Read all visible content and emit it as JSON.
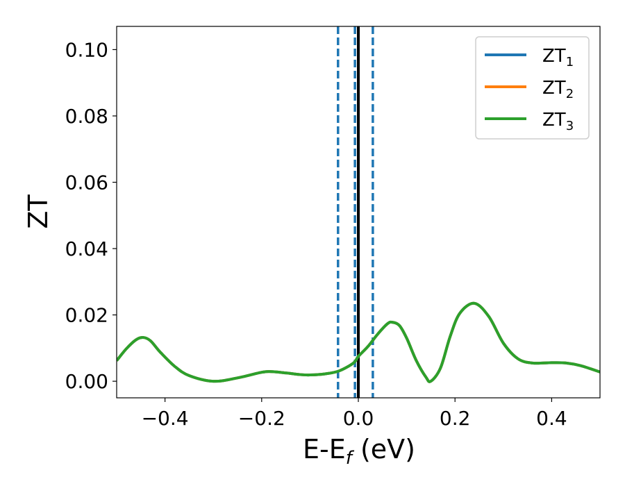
{
  "chart_data": {
    "type": "line",
    "xlabel_main": "E-E",
    "xlabel_sub": "f",
    "xlabel_unit": " (eV)",
    "ylabel": "ZT",
    "xlim": [
      -0.5,
      0.5
    ],
    "ylim": [
      -0.005,
      0.107
    ],
    "x_ticks": [
      -0.4,
      -0.2,
      0.0,
      0.2,
      0.4
    ],
    "x_tick_labels": [
      "−0.4",
      "−0.2",
      "0.0",
      "0.2",
      "0.4"
    ],
    "y_ticks": [
      0.0,
      0.02,
      0.04,
      0.06,
      0.08,
      0.1
    ],
    "y_tick_labels": [
      "0.00",
      "0.02",
      "0.04",
      "0.06",
      "0.08",
      "0.10"
    ],
    "legend_position": "top-right",
    "grid": false,
    "vlines": [
      {
        "x": 0.0,
        "style": "solid",
        "color": "#000000"
      },
      {
        "x": -0.042,
        "style": "dashed",
        "color": "#1f77b4"
      },
      {
        "x": -0.007,
        "style": "dashed",
        "color": "#1f77b4"
      },
      {
        "x": 0.03,
        "style": "dashed",
        "color": "#1f77b4"
      }
    ],
    "series": [
      {
        "name_main": "ZT",
        "name_sub": "1",
        "color": "#1f77b4"
      },
      {
        "name_main": "ZT",
        "name_sub": "2",
        "color": "#ff7f0e"
      },
      {
        "name_main": "ZT",
        "name_sub": "3",
        "color": "#2ca02c"
      }
    ],
    "x": [
      -0.5,
      -0.48,
      -0.46,
      -0.445,
      -0.43,
      -0.41,
      -0.38,
      -0.35,
      -0.3,
      -0.25,
      -0.2,
      -0.18,
      -0.15,
      -0.12,
      -0.1,
      -0.07,
      -0.04,
      -0.01,
      0.0,
      0.02,
      0.04,
      0.06,
      0.07,
      0.085,
      0.1,
      0.12,
      0.14,
      0.15,
      0.17,
      0.19,
      0.21,
      0.24,
      0.27,
      0.3,
      0.33,
      0.36,
      0.4,
      0.43,
      0.46,
      0.5
    ],
    "y": [
      0.0062,
      0.0098,
      0.0125,
      0.0132,
      0.0122,
      0.0088,
      0.0045,
      0.0017,
      0.0,
      0.001,
      0.0027,
      0.0029,
      0.0025,
      0.002,
      0.0019,
      0.0022,
      0.0031,
      0.0055,
      0.0075,
      0.0105,
      0.0142,
      0.0173,
      0.0178,
      0.0168,
      0.013,
      0.0062,
      0.0012,
      0.0,
      0.004,
      0.0135,
      0.0205,
      0.0235,
      0.0195,
      0.0115,
      0.0068,
      0.0055,
      0.0056,
      0.0055,
      0.0047,
      0.0028
    ]
  }
}
